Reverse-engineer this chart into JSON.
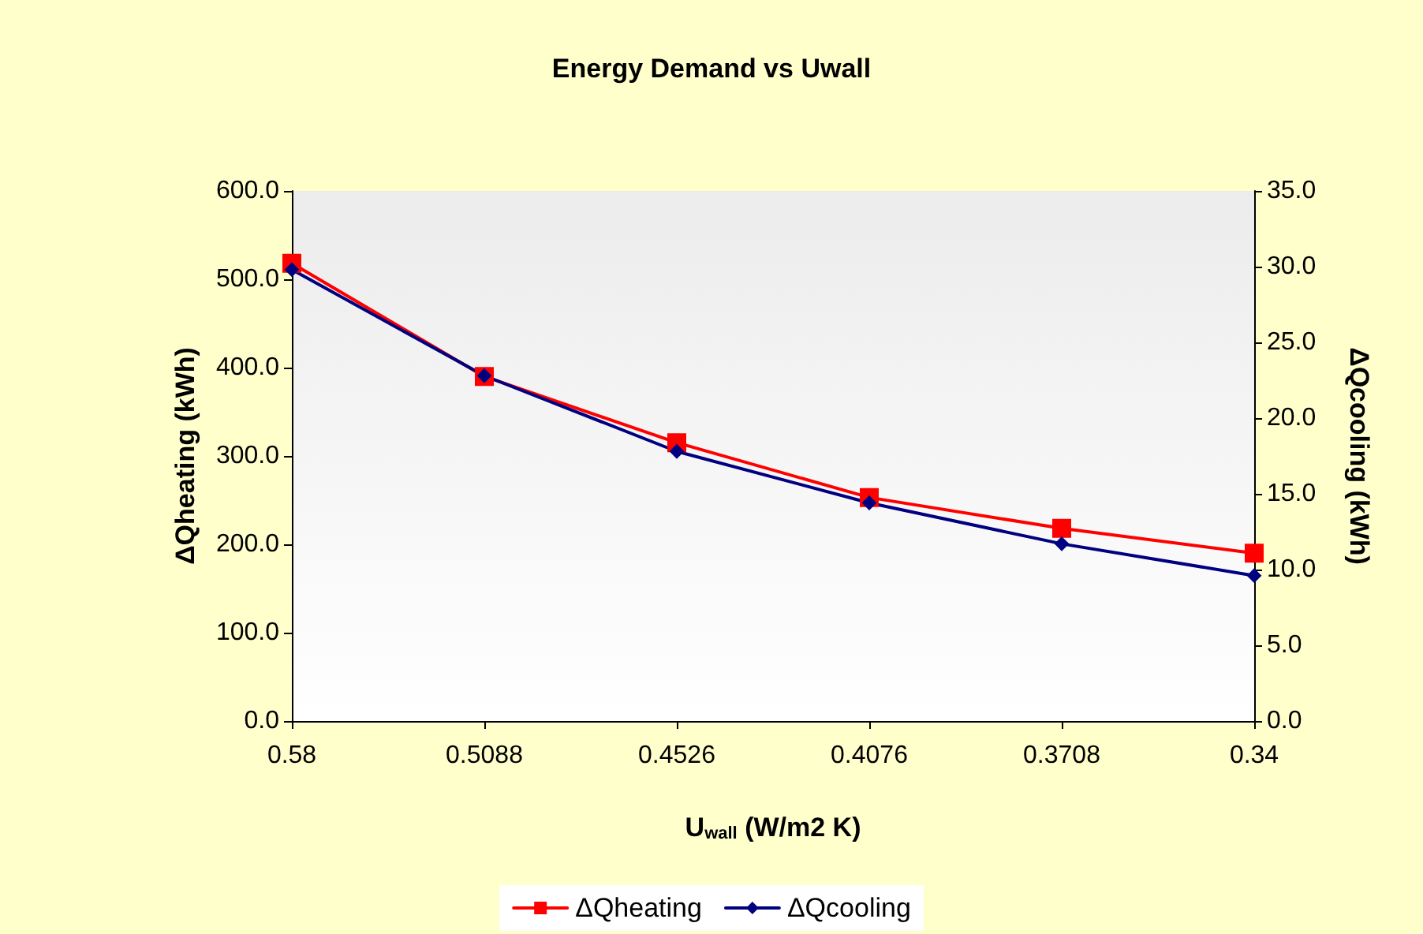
{
  "chart_data": {
    "type": "line",
    "title": "Energy Demand vs Uwall",
    "xlabel": "U$_{wall}$ (W/m2 K)",
    "ylabel": "ΔQheating (kWh)",
    "y2label": "ΔQcooling (kWh)",
    "categories": [
      "0.58",
      "0.5088",
      "0.4526",
      "0.4076",
      "0.3708",
      "0.34"
    ],
    "series": [
      {
        "name": "ΔQheating",
        "color": "#ff0000",
        "marker": "square",
        "values": [
          518,
          390,
          315,
          253,
          218,
          190
        ]
      },
      {
        "name": "ΔQcooling",
        "color": "#000080",
        "marker": "diamond",
        "axis": "y2",
        "values": [
          29.8,
          22.8,
          17.8,
          14.4,
          11.7,
          9.6
        ]
      }
    ],
    "ylim": [
      0,
      600
    ],
    "yticks": [
      {
        "value": 0,
        "label": "0.0"
      },
      {
        "value": 100,
        "label": "100.0"
      },
      {
        "value": 200,
        "label": "200.0"
      },
      {
        "value": 300,
        "label": "300.0"
      },
      {
        "value": 400,
        "label": "400.0"
      },
      {
        "value": 500,
        "label": "500.0"
      },
      {
        "value": 600,
        "label": "600.0"
      }
    ],
    "y2lim": [
      0,
      35
    ],
    "y2ticks": [
      {
        "value": 0,
        "label": "0.0"
      },
      {
        "value": 5,
        "label": "5.0"
      },
      {
        "value": 10,
        "label": "10.0"
      },
      {
        "value": 15,
        "label": "15.0"
      },
      {
        "value": 20,
        "label": "20.0"
      },
      {
        "value": 25,
        "label": "25.0"
      },
      {
        "value": 30,
        "label": "30.0"
      },
      {
        "value": 35,
        "label": "35.0"
      }
    ],
    "grid": false,
    "legend": "bottom"
  }
}
